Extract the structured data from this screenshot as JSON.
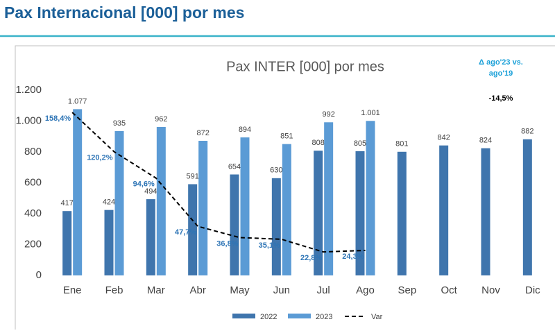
{
  "header": {
    "title": "Pax Internacional [000] por mes"
  },
  "chart_data": {
    "type": "bar",
    "title": "Pax INTER [000] por mes",
    "annotations": [
      "Δ ago'23 vs. ago'19",
      "-14,5%"
    ],
    "categories": [
      "Ene",
      "Feb",
      "Mar",
      "Abr",
      "May",
      "Jun",
      "Jul",
      "Ago",
      "Sep",
      "Oct",
      "Nov",
      "Dic"
    ],
    "series": [
      {
        "name": "2022",
        "color": "#3f75ad",
        "values": [
          417,
          424,
          494,
          591,
          654,
          630,
          808,
          805,
          801,
          842,
          824,
          882
        ]
      },
      {
        "name": "2023",
        "color": "#5b9bd5",
        "values": [
          1077,
          935,
          962,
          872,
          894,
          851,
          992,
          1001,
          null,
          null,
          null,
          null
        ],
        "value_labels": [
          "1.077",
          "935",
          "962",
          "872",
          "894",
          "851",
          "992",
          "1.001",
          null,
          null,
          null,
          null
        ]
      },
      {
        "name": "Var",
        "type": "line",
        "color": "#000000",
        "axis": "y2",
        "dashed": true,
        "values": [
          158.4,
          120.2,
          94.6,
          47.7,
          36.8,
          35.1,
          22.8,
          24.3,
          null,
          null,
          null,
          null
        ],
        "value_labels": [
          "158,4%",
          "120,2%",
          "94,6%",
          "47,7%",
          "36,8%",
          "35,1%",
          "22,8%",
          "24,3%",
          null,
          null,
          null,
          null
        ]
      }
    ],
    "ylim": [
      0,
      1200
    ],
    "yticks": [
      0,
      200,
      400,
      600,
      800,
      {
        "value": 1000,
        "label": "1.000"
      },
      {
        "value": 1200,
        "label": "1.200"
      }
    ],
    "y2lim": [
      0,
      180
    ],
    "legend": "bottom"
  }
}
